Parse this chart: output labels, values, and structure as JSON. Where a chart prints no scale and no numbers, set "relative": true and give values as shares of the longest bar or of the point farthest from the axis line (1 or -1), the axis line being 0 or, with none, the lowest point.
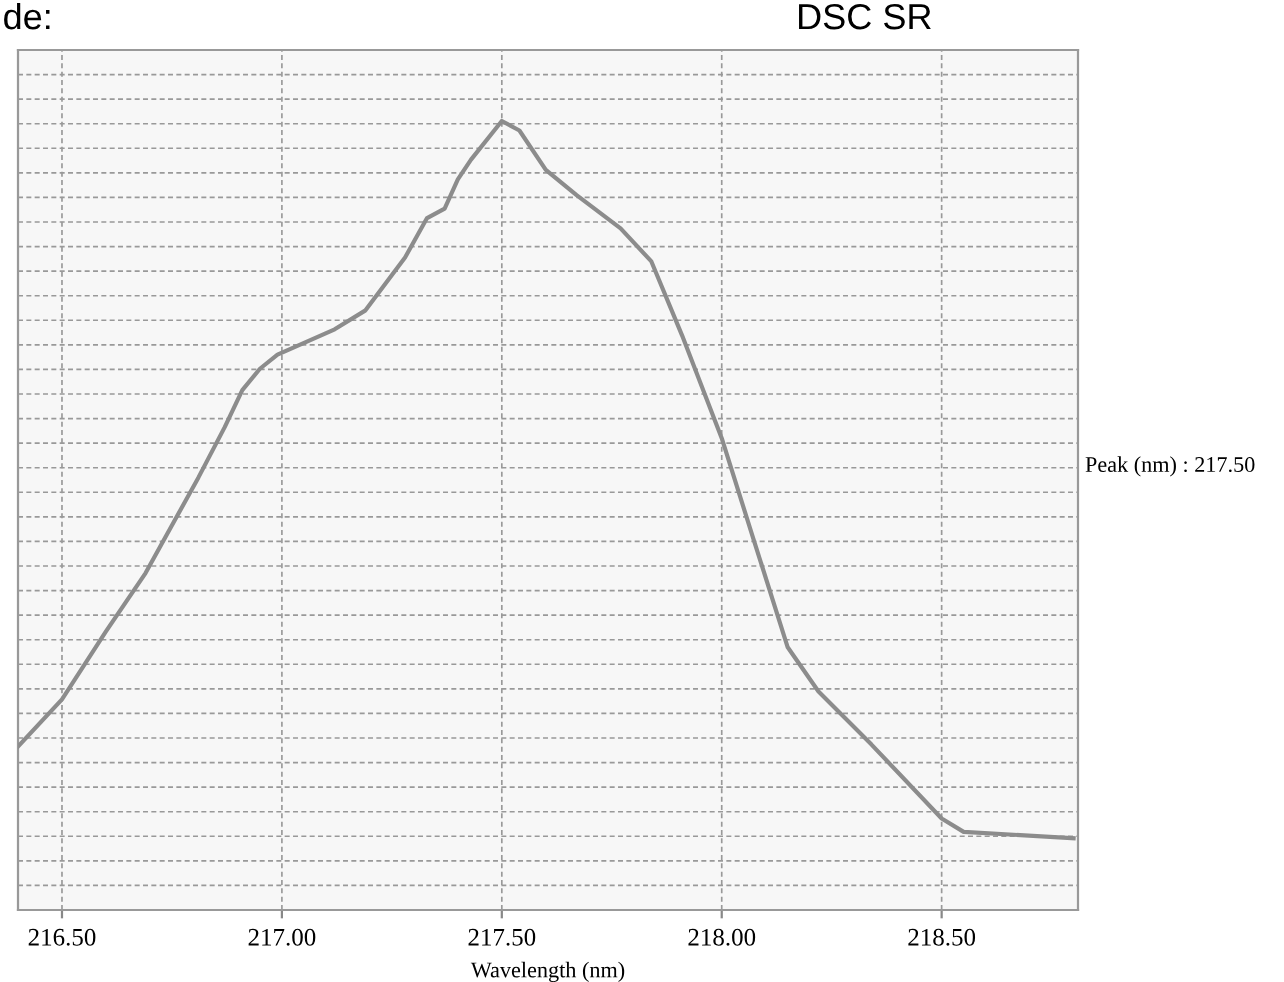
{
  "chart_data": {
    "type": "line",
    "relative": true,
    "xlabel": "Wavelength (nm)",
    "x": [
      216.4,
      216.5,
      216.6,
      216.69,
      216.81,
      216.87,
      216.91,
      216.95,
      216.99,
      217.12,
      217.19,
      217.28,
      217.33,
      217.37,
      217.4,
      217.43,
      217.5,
      217.54,
      217.6,
      217.67,
      217.77,
      217.84,
      217.91,
      218.0,
      218.07,
      218.15,
      218.22,
      218.34,
      218.5,
      218.55,
      218.8
    ],
    "series": [
      {
        "color": "#8c8c8c",
        "values": [
          0.207,
          0.267,
          0.353,
          0.427,
          0.548,
          0.612,
          0.659,
          0.686,
          0.704,
          0.736,
          0.76,
          0.827,
          0.877,
          0.889,
          0.926,
          0.951,
          1.0,
          0.988,
          0.938,
          0.906,
          0.864,
          0.822,
          0.728,
          0.598,
          0.474,
          0.333,
          0.277,
          0.21,
          0.116,
          0.099,
          0.091
        ]
      }
    ],
    "xlim": [
      216.4,
      218.81
    ],
    "xticks": [
      {
        "value": 216.5,
        "label": "216.50"
      },
      {
        "value": 217.0,
        "label": "217.00"
      },
      {
        "value": 217.5,
        "label": "217.50"
      },
      {
        "value": 218.0,
        "label": "218.00"
      },
      {
        "value": 218.5,
        "label": "218.50"
      }
    ],
    "grid": true,
    "line_style": "solid",
    "marker": "none",
    "annotations": [
      "de:",
      "DSC SR",
      "Peak (nm) : 217.50"
    ]
  }
}
